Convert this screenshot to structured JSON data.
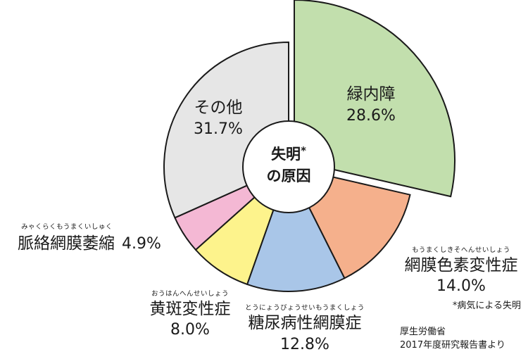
{
  "chart_data": {
    "type": "pie",
    "title": "失明の原因",
    "title_lines": [
      "失明",
      "の原因"
    ],
    "title_mark": "*",
    "slices": [
      {
        "name": "緑内障",
        "ruby": "",
        "value": 28.6,
        "label": "28.6%",
        "color": "#c2dfad",
        "exploded": true
      },
      {
        "name": "網膜色素変性症",
        "ruby": "もうまくしきそへんせいしょう",
        "value": 14.0,
        "label": "14.0%",
        "color": "#f5b08c",
        "exploded": false
      },
      {
        "name": "糖尿病性網膜症",
        "ruby": "とうにょうびょうせいもうまくしょう",
        "value": 12.8,
        "label": "12.8%",
        "color": "#a9c6e8",
        "exploded": false
      },
      {
        "name": "黄斑変性症",
        "ruby": "おうはんへんせいしょう",
        "value": 8.0,
        "label": "8.0%",
        "color": "#fdf38c",
        "exploded": false
      },
      {
        "name": "脈絡網膜萎縮",
        "ruby": "みゃくらくもうまくいしゅく",
        "value": 4.9,
        "label": "4.9%",
        "color": "#f4b8d4",
        "exploded": false
      },
      {
        "name": "その他",
        "ruby": "",
        "value": 31.7,
        "label": "31.7%",
        "color": "#e6e6e6",
        "exploded": false
      }
    ],
    "notes": [
      "*病気による失明",
      "厚生労働省",
      "2017年度研究報告書より"
    ]
  }
}
